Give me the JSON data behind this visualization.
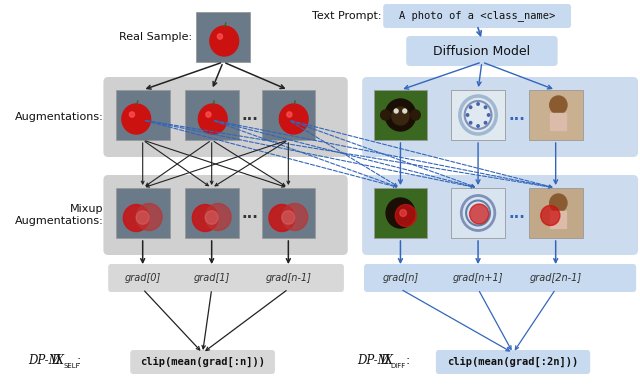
{
  "bg_color": "#ffffff",
  "left_panel_aug_bg": "#d0d0d0",
  "left_panel_mix_bg": "#d0d0d0",
  "right_panel_aug_bg": "#ccdcee",
  "right_panel_mix_bg": "#ccdcee",
  "grad_box_left_bg": "#d8d8d8",
  "grad_box_right_bg": "#c8daf0",
  "formula_left_bg": "#d8d8d8",
  "formula_right_bg": "#c8daf0",
  "text_prompt_box_bg": "#c8daf0",
  "diffusion_model_box_bg": "#c8daf0",
  "arrow_black": "#222222",
  "arrow_blue": "#3366bb",
  "img_bg_dark": "#6a7a88",
  "apple_color": "#cc1111",
  "apple_stem": "#336622",
  "chimp_bg": "#4a7a30",
  "plate_bg": "#e8eef5",
  "child_bg": "#c8a888",
  "real_sample_label": "Real Sample:",
  "aug_label": "Augmentations:",
  "mixup_label_line1": "Mixup",
  "mixup_label_line2": "Augmentations:",
  "text_prompt_text": "A photo of a <class_name>",
  "diffusion_model_text": "Diffusion Model",
  "grad_labels_left": [
    "grad[0]",
    "grad[1]",
    "grad[n-1]"
  ],
  "grad_labels_right": [
    "grad[n]",
    "grad[n+1]",
    "grad[2n-1]"
  ],
  "dp_mix_self_formula": "clip(mean(grad[:n]))",
  "dp_mix_diff_formula": "clip(mean(grad[:2n]))",
  "dots": "..."
}
